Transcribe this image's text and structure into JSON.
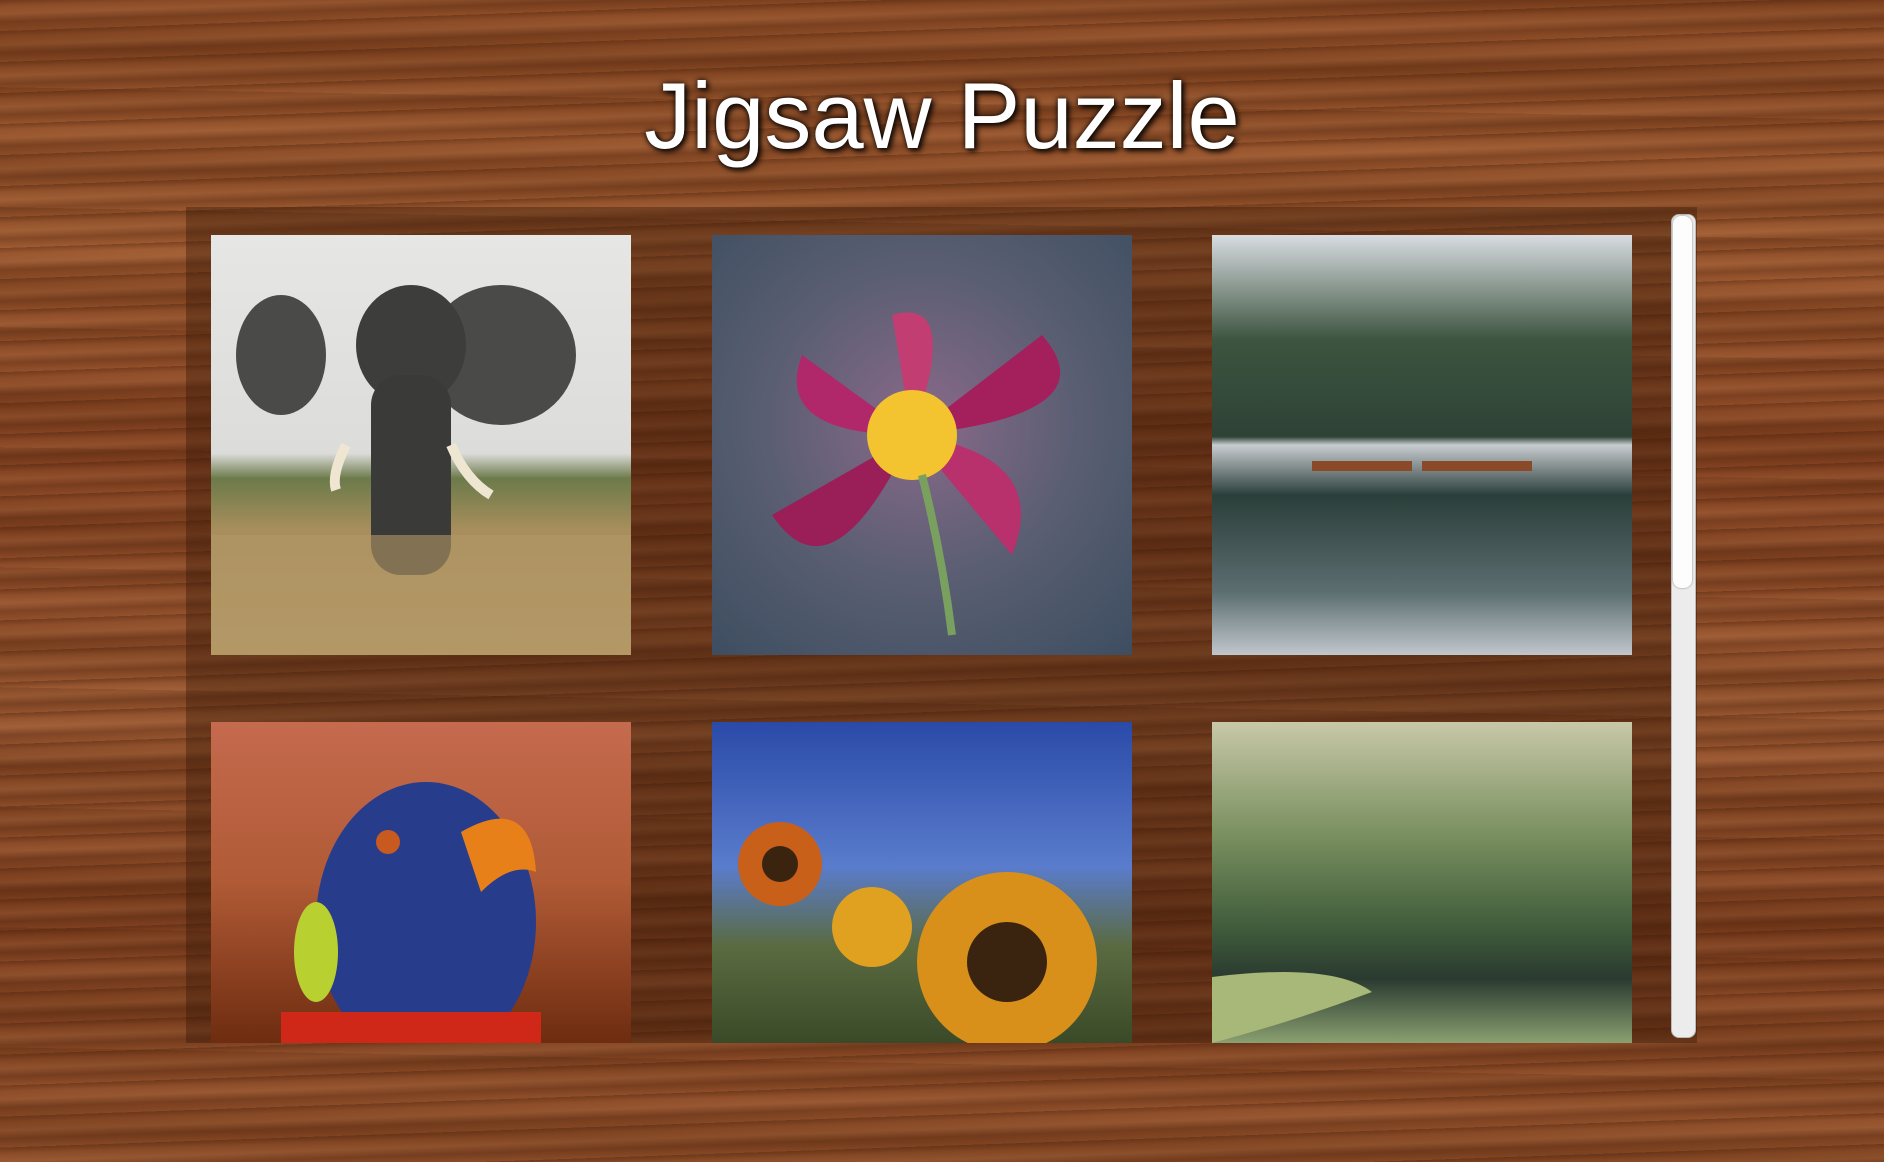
{
  "header": {
    "title": "Jigsaw Puzzle"
  }
}
